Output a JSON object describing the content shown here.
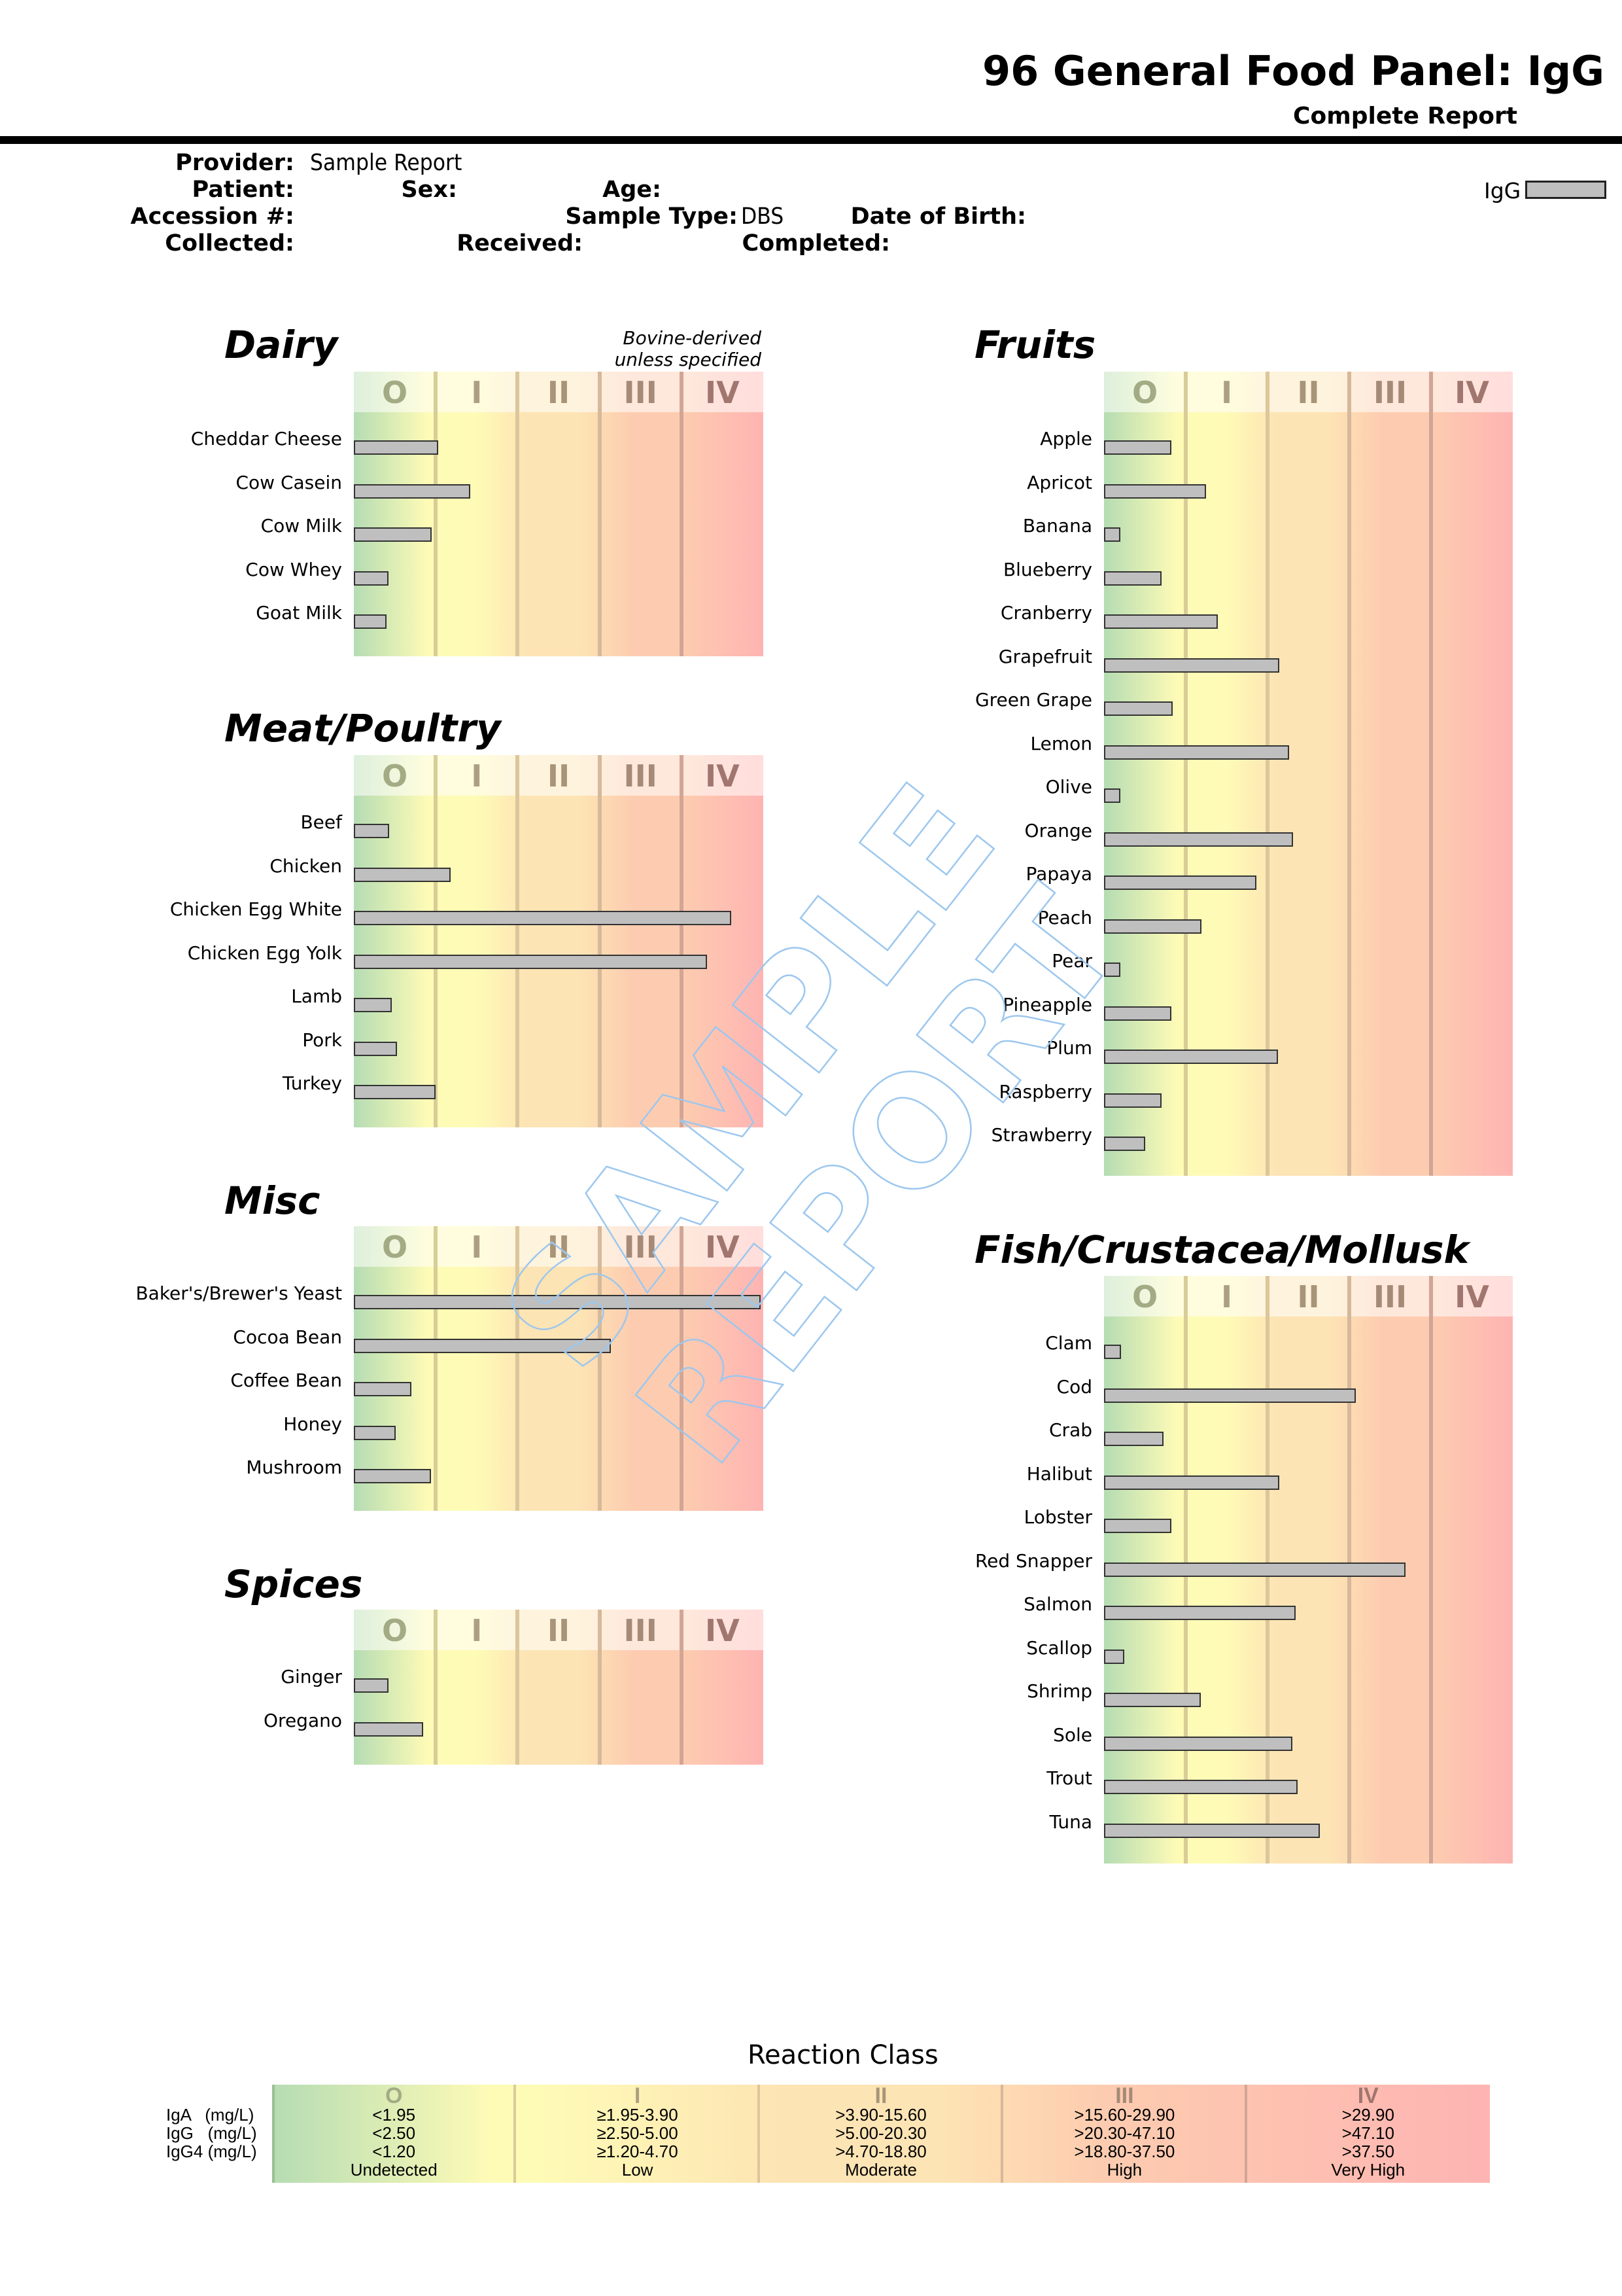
{
  "header": {
    "title": "96 General Food Panel: IgG",
    "subtitle": "Complete Report"
  },
  "patient_info": {
    "provider_label": "Provider:",
    "provider_value": "Sample Report",
    "patient_label": "Patient:",
    "sex_label": "Sex:",
    "age_label": "Age:",
    "accession_label": "Accession #:",
    "sample_type_label": "Sample Type:",
    "sample_type_value": "DBS",
    "dob_label": "Date of Birth:",
    "collected_label": "Collected:",
    "received_label": "Received:",
    "completed_label": "Completed:"
  },
  "legend": {
    "label": "IgG",
    "swatch_color": "#bfbfbf"
  },
  "class_labels": [
    "O",
    "I",
    "II",
    "III",
    "IV"
  ],
  "class_label_colors": [
    "#a3ab85",
    "#ada082",
    "#a79479",
    "#a58a78",
    "#a0766f"
  ],
  "zone_colors": {
    "green": "#b5dcb3",
    "yellow": "#fefbb6",
    "peach": "#fde4b4",
    "orange": "#fdccb0",
    "red": "#feb4b2"
  },
  "watermark": "SAMPLE REPORT",
  "chart_data": [
    {
      "type": "bar",
      "title": "Dairy",
      "note_line1": "Bovine-derived",
      "note_line2": "unless specified",
      "xlim": [
        0,
        5
      ],
      "x_unit": "reaction class",
      "categories": [
        "Cheddar Cheese",
        "Cow Casein",
        "Cow Milk",
        "Cow Whey",
        "Goat Milk"
      ],
      "values": [
        1.03,
        1.42,
        0.95,
        0.42,
        0.4
      ]
    },
    {
      "type": "bar",
      "title": "Meat/Poultry",
      "xlim": [
        0,
        5
      ],
      "categories": [
        "Beef",
        "Chicken",
        "Chicken Egg White",
        "Chicken Egg Yolk",
        "Lamb",
        "Pork",
        "Turkey"
      ],
      "values": [
        0.43,
        1.18,
        4.61,
        4.31,
        0.46,
        0.53,
        1.0
      ]
    },
    {
      "type": "bar",
      "title": "Misc",
      "xlim": [
        0,
        5
      ],
      "categories": [
        "Baker's/Brewer's Yeast",
        "Cocoa Bean",
        "Coffee Bean",
        "Honey",
        "Mushroom"
      ],
      "values": [
        4.97,
        3.14,
        0.7,
        0.51,
        0.94
      ]
    },
    {
      "type": "bar",
      "title": "Spices",
      "xlim": [
        0,
        5
      ],
      "categories": [
        "Ginger",
        "Oregano"
      ],
      "values": [
        0.42,
        0.85
      ]
    },
    {
      "type": "bar",
      "title": "Fruits",
      "xlim": [
        0,
        5
      ],
      "categories": [
        "Apple",
        "Apricot",
        "Banana",
        "Blueberry",
        "Cranberry",
        "Grapefruit",
        "Green Grape",
        "Lemon",
        "Olive",
        "Orange",
        "Papaya",
        "Peach",
        "Pear",
        "Pineapple",
        "Plum",
        "Raspberry",
        "Strawberry"
      ],
      "values": [
        0.82,
        1.25,
        0.2,
        0.7,
        1.39,
        2.14,
        0.84,
        2.26,
        0.2,
        2.31,
        1.86,
        1.19,
        0.2,
        0.82,
        2.13,
        0.7,
        0.5
      ]
    },
    {
      "type": "bar",
      "title": "Fish/Crustacea/Mollusk",
      "xlim": [
        0,
        5
      ],
      "categories": [
        "Clam",
        "Cod",
        "Crab",
        "Halibut",
        "Lobster",
        "Red Snapper",
        "Salmon",
        "Scallop",
        "Shrimp",
        "Sole",
        "Trout",
        "Tuna"
      ],
      "values": [
        0.21,
        3.08,
        0.73,
        2.14,
        0.82,
        3.69,
        2.34,
        0.25,
        1.18,
        2.3,
        2.37,
        2.64
      ]
    }
  ],
  "reaction_class": {
    "title": "Reaction Class",
    "row_labels": [
      "IgA   (mg/L)",
      "IgG   (mg/L)",
      "IgG4 (mg/L)"
    ],
    "columns": [
      {
        "class": "O",
        "iga": "<1.95",
        "igg": "<2.50",
        "igg4": "<1.20",
        "level": "Undetected"
      },
      {
        "class": "I",
        "iga": "≥1.95-3.90",
        "igg": "≥2.50-5.00",
        "igg4": "≥1.20-4.70",
        "level": "Low"
      },
      {
        "class": "II",
        "iga": ">3.90-15.60",
        "igg": ">5.00-20.30",
        "igg4": ">4.70-18.80",
        "level": "Moderate"
      },
      {
        "class": "III",
        "iga": ">15.60-29.90",
        "igg": ">20.30-47.10",
        "igg4": ">18.80-37.50",
        "level": "High"
      },
      {
        "class": "IV",
        "iga": ">29.90",
        "igg": ">47.10",
        "igg4": ">37.50",
        "level": "Very High"
      }
    ]
  }
}
